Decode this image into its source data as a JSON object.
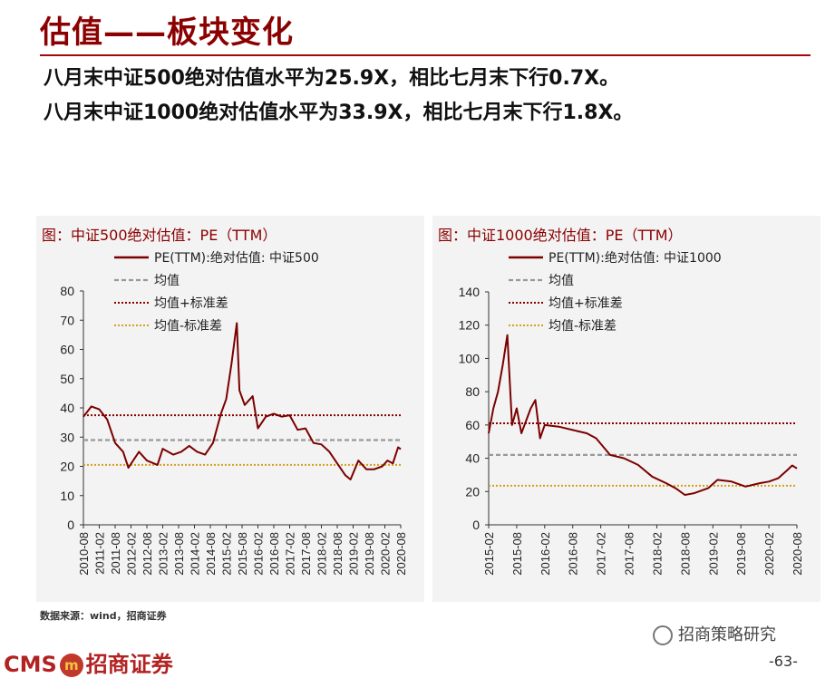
{
  "header": {
    "title": "估值——板块变化",
    "bullet1": "八月末中证500绝对估值水平为25.9X，相比七月末下行0.7X。",
    "bullet2": "八月末中证1000绝对估值水平为33.9X，相比七月末下行1.8X。"
  },
  "footer": {
    "source": "数据来源：wind，招商证券",
    "logo_text": "CMS",
    "logo_badge": "m",
    "logo_cn": "招商证券",
    "wechat": "招商策略研究",
    "page": "-63-"
  },
  "colors": {
    "pe_line": "#7b0000",
    "mean_line": "#999999",
    "plus_sd": "#8b0000",
    "minus_sd": "#d4a017"
  },
  "chart_data": [
    {
      "type": "line",
      "title": "图：中证500绝对估值：PE（TTM）",
      "legend_position": "top",
      "legend": [
        "PE(TTM):绝对估值: 中证500",
        "均值",
        "均值+标准差",
        "均值-标准差"
      ],
      "ylim": [
        0,
        80
      ],
      "yticks": [
        "0",
        "10",
        "20",
        "30",
        "40",
        "50",
        "60",
        "70",
        "80"
      ],
      "xrange": [
        "2010-08",
        "2020-08"
      ],
      "xticks": [
        "2010-08",
        "2011-02",
        "2011-08",
        "2012-02",
        "2012-08",
        "2013-02",
        "2013-08",
        "2014-02",
        "2014-08",
        "2015-02",
        "2015-08",
        "2016-02",
        "2016-08",
        "2017-02",
        "2017-08",
        "2018-02",
        "2018-08",
        "2019-02",
        "2019-08",
        "2020-02",
        "2020-08"
      ],
      "series": [
        {
          "name": "PE(TTM):绝对估值: 中证500",
          "x": [
            "2010-08",
            "2010-11",
            "2011-02",
            "2011-05",
            "2011-08",
            "2011-11",
            "2012-01",
            "2012-05",
            "2012-08",
            "2012-12",
            "2013-02",
            "2013-06",
            "2013-09",
            "2013-12",
            "2014-03",
            "2014-06",
            "2014-09",
            "2014-12",
            "2015-02",
            "2015-04",
            "2015-06",
            "2015-07",
            "2015-09",
            "2015-12",
            "2016-02",
            "2016-05",
            "2016-08",
            "2016-11",
            "2017-02",
            "2017-05",
            "2017-08",
            "2017-11",
            "2018-02",
            "2018-05",
            "2018-08",
            "2018-11",
            "2019-01",
            "2019-04",
            "2019-07",
            "2019-10",
            "2020-01",
            "2020-03",
            "2020-05",
            "2020-07",
            "2020-08"
          ],
          "values": [
            37,
            40.5,
            39.5,
            36,
            28,
            25,
            19.5,
            25,
            22,
            20.5,
            26,
            24,
            25,
            27,
            25,
            24,
            28,
            38,
            43,
            55,
            69,
            46,
            41,
            44,
            33,
            37,
            38,
            37,
            37.5,
            32.5,
            33,
            28,
            27.5,
            25,
            21,
            17,
            15.5,
            22,
            19,
            19,
            20,
            22,
            21,
            26.5,
            25.9
          ]
        },
        {
          "name": "均值",
          "value": 29
        },
        {
          "name": "均值+标准差",
          "value": 37.5
        },
        {
          "name": "均值-标准差",
          "value": 20.5
        }
      ]
    },
    {
      "type": "line",
      "title": "图：中证1000绝对估值：PE（TTM）",
      "legend_position": "top",
      "legend": [
        "PE(TTM):绝对估值: 中证1000",
        "均值",
        "均值+标准差",
        "均值-标准差"
      ],
      "ylim": [
        0,
        140
      ],
      "yticks": [
        "0",
        "20",
        "40",
        "60",
        "80",
        "100",
        "120",
        "140"
      ],
      "xrange": [
        "2015-02",
        "2020-08"
      ],
      "xticks": [
        "2015-02",
        "2015-08",
        "2016-02",
        "2016-08",
        "2017-02",
        "2017-08",
        "2018-02",
        "2018-08",
        "2019-02",
        "2019-08",
        "2020-02",
        "2020-08"
      ],
      "series": [
        {
          "name": "PE(TTM):绝对估值: 中证1000",
          "x": [
            "2015-02",
            "2015-03",
            "2015-04",
            "2015-05",
            "2015-06",
            "2015-07",
            "2015-08",
            "2015-09",
            "2015-11",
            "2015-12",
            "2016-01",
            "2016-02",
            "2016-05",
            "2016-08",
            "2016-11",
            "2017-01",
            "2017-04",
            "2017-07",
            "2017-10",
            "2018-01",
            "2018-04",
            "2018-06",
            "2018-08",
            "2018-10",
            "2019-01",
            "2019-03",
            "2019-06",
            "2019-09",
            "2019-12",
            "2020-02",
            "2020-04",
            "2020-06",
            "2020-07",
            "2020-08"
          ],
          "values": [
            55,
            70,
            80,
            96,
            114,
            60,
            70,
            55,
            70,
            75,
            52,
            60,
            59,
            57,
            55,
            52,
            42,
            40,
            36,
            29,
            25,
            22,
            18,
            19,
            22,
            27,
            26,
            23,
            25,
            26,
            28,
            33,
            35.7,
            33.9
          ]
        },
        {
          "name": "均值",
          "value": 42
        },
        {
          "name": "均值+标准差",
          "value": 61
        },
        {
          "name": "均值-标准差",
          "value": 23.5
        }
      ]
    }
  ]
}
